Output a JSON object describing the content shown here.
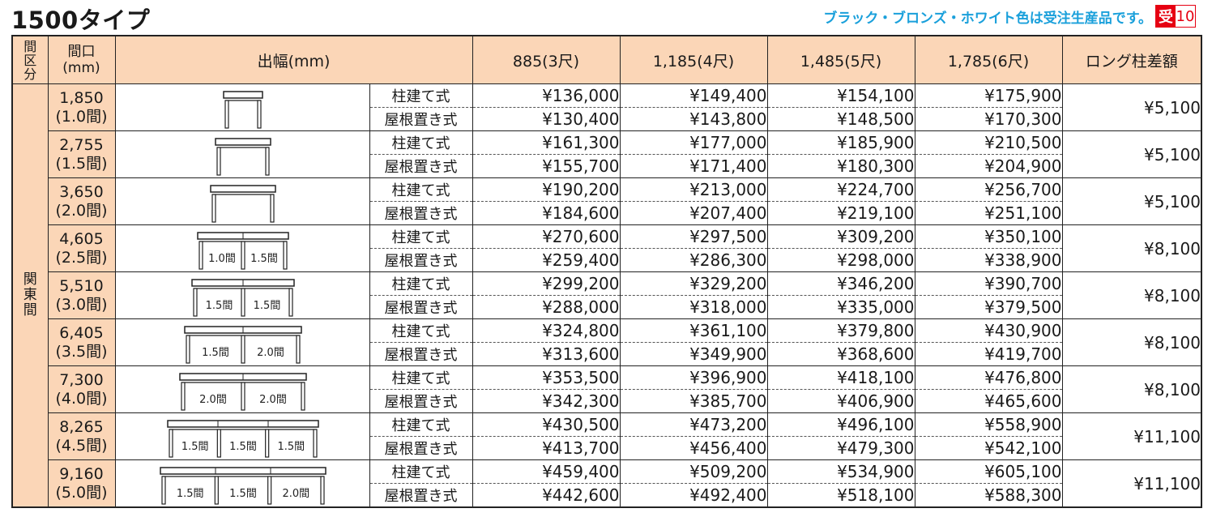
{
  "title": "1500タイプ",
  "note": "ブラック・ブロンズ・ホワイト色は受注生産品です。",
  "badge": {
    "mark": "受",
    "days": "10"
  },
  "colors": {
    "header_bg": "#fbd6b7",
    "note_color": "#1aa0db",
    "badge_red": "#e60012"
  },
  "header": {
    "region": "間区分",
    "span": "間口(mm)",
    "width": "出幅(mm)",
    "w1": "885(3尺)",
    "w2": "1,185(4尺)",
    "w3": "1,485(5尺)",
    "w4": "1,785(6尺)",
    "long": "ロング柱差額"
  },
  "region_label": "関東間",
  "rows": [
    {
      "mm": "1,850",
      "ken": "(1.0間)",
      "diagram": {
        "bays": []
      },
      "post": {
        "type": "柱建て式",
        "prices": [
          "¥136,000",
          "¥149,400",
          "¥154,100",
          "¥175,900"
        ]
      },
      "roof": {
        "type": "屋根置き式",
        "prices": [
          "¥130,400",
          "¥143,800",
          "¥148,500",
          "¥170,300"
        ]
      },
      "long": "¥5,100"
    },
    {
      "mm": "2,755",
      "ken": "(1.5間)",
      "diagram": {
        "bays": []
      },
      "post": {
        "type": "柱建て式",
        "prices": [
          "¥161,300",
          "¥177,000",
          "¥185,900",
          "¥210,500"
        ]
      },
      "roof": {
        "type": "屋根置き式",
        "prices": [
          "¥155,700",
          "¥171,400",
          "¥180,300",
          "¥204,900"
        ]
      },
      "long": "¥5,100"
    },
    {
      "mm": "3,650",
      "ken": "(2.0間)",
      "diagram": {
        "bays": []
      },
      "post": {
        "type": "柱建て式",
        "prices": [
          "¥190,200",
          "¥213,000",
          "¥224,700",
          "¥256,700"
        ]
      },
      "roof": {
        "type": "屋根置き式",
        "prices": [
          "¥184,600",
          "¥207,400",
          "¥219,100",
          "¥251,100"
        ]
      },
      "long": "¥5,100"
    },
    {
      "mm": "4,605",
      "ken": "(2.5間)",
      "diagram": {
        "bays": [
          "1.0間",
          "1.5間"
        ]
      },
      "post": {
        "type": "柱建て式",
        "prices": [
          "¥270,600",
          "¥297,500",
          "¥309,200",
          "¥350,100"
        ]
      },
      "roof": {
        "type": "屋根置き式",
        "prices": [
          "¥259,400",
          "¥286,300",
          "¥298,000",
          "¥338,900"
        ]
      },
      "long": "¥8,100"
    },
    {
      "mm": "5,510",
      "ken": "(3.0間)",
      "diagram": {
        "bays": [
          "1.5間",
          "1.5間"
        ]
      },
      "post": {
        "type": "柱建て式",
        "prices": [
          "¥299,200",
          "¥329,200",
          "¥346,200",
          "¥390,700"
        ]
      },
      "roof": {
        "type": "屋根置き式",
        "prices": [
          "¥288,000",
          "¥318,000",
          "¥335,000",
          "¥379,500"
        ]
      },
      "long": "¥8,100"
    },
    {
      "mm": "6,405",
      "ken": "(3.5間)",
      "diagram": {
        "bays": [
          "1.5間",
          "2.0間"
        ]
      },
      "post": {
        "type": "柱建て式",
        "prices": [
          "¥324,800",
          "¥361,100",
          "¥379,800",
          "¥430,900"
        ]
      },
      "roof": {
        "type": "屋根置き式",
        "prices": [
          "¥313,600",
          "¥349,900",
          "¥368,600",
          "¥419,700"
        ]
      },
      "long": "¥8,100"
    },
    {
      "mm": "7,300",
      "ken": "(4.0間)",
      "diagram": {
        "bays": [
          "2.0間",
          "2.0間"
        ]
      },
      "post": {
        "type": "柱建て式",
        "prices": [
          "¥353,500",
          "¥396,900",
          "¥418,100",
          "¥476,800"
        ]
      },
      "roof": {
        "type": "屋根置き式",
        "prices": [
          "¥342,300",
          "¥385,700",
          "¥406,900",
          "¥465,600"
        ]
      },
      "long": "¥8,100"
    },
    {
      "mm": "8,265",
      "ken": "(4.5間)",
      "diagram": {
        "bays": [
          "1.5間",
          "1.5間",
          "1.5間"
        ]
      },
      "post": {
        "type": "柱建て式",
        "prices": [
          "¥430,500",
          "¥473,200",
          "¥496,100",
          "¥558,900"
        ]
      },
      "roof": {
        "type": "屋根置き式",
        "prices": [
          "¥413,700",
          "¥456,400",
          "¥479,300",
          "¥542,100"
        ]
      },
      "long": "¥11,100"
    },
    {
      "mm": "9,160",
      "ken": "(5.0間)",
      "diagram": {
        "bays": [
          "1.5間",
          "1.5間",
          "2.0間"
        ]
      },
      "post": {
        "type": "柱建て式",
        "prices": [
          "¥459,400",
          "¥509,200",
          "¥534,900",
          "¥605,100"
        ]
      },
      "roof": {
        "type": "屋根置き式",
        "prices": [
          "¥442,600",
          "¥492,400",
          "¥518,100",
          "¥588,300"
        ]
      },
      "long": "¥11,100"
    }
  ]
}
